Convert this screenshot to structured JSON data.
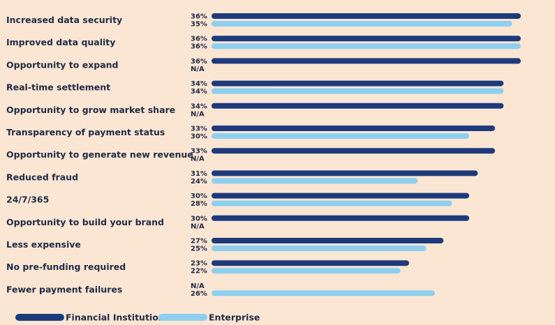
{
  "chart_data": {
    "type": "bar",
    "orientation": "horizontal",
    "categories": [
      "Increased data security",
      "Improved data quality",
      "Opportunity to expand",
      "Real-time settlement",
      "Opportunity to grow market share",
      "Transparency of payment status",
      "Opportunity to generate new revenue",
      "Reduced fraud",
      "24/7/365",
      "Opportunity to build your brand",
      "Less expensive",
      "No pre-funding required",
      "Fewer payment failures"
    ],
    "series": [
      {
        "name": "Financial Institution",
        "color": "#1e3a7b",
        "values": [
          36,
          36,
          36,
          34,
          34,
          33,
          33,
          31,
          30,
          30,
          27,
          23,
          null
        ],
        "labels": [
          "36%",
          "36%",
          "36%",
          "34%",
          "34%",
          "33%",
          "33%",
          "31%",
          "30%",
          "30%",
          "27%",
          "23%",
          "N/A"
        ]
      },
      {
        "name": "Enterprise",
        "color": "#8ecff0",
        "values": [
          35,
          36,
          null,
          34,
          null,
          30,
          null,
          24,
          28,
          null,
          25,
          22,
          26
        ],
        "labels": [
          "35%",
          "36%",
          "N/A",
          "34%",
          "N/A",
          "30%",
          "N/A",
          "24%",
          "28%",
          "N/A",
          "25%",
          "22%",
          "26%"
        ]
      }
    ],
    "xlim": [
      0,
      36
    ],
    "grid": false,
    "legend_position": "bottom-left"
  }
}
